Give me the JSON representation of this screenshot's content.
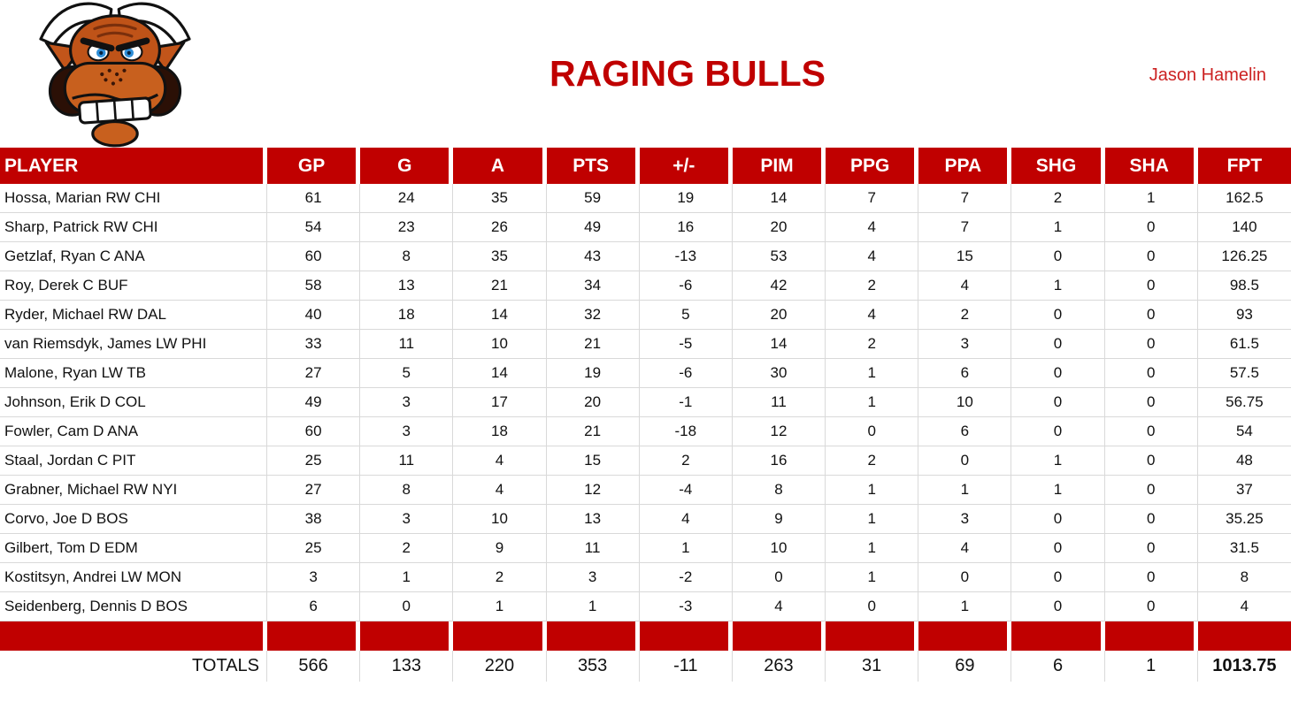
{
  "page": {
    "title": "RAGING BULLS",
    "owner": "Jason Hamelin"
  },
  "colors": {
    "accent_red": "#C00000",
    "owner_red": "#CC2222",
    "gridline": "#D9D9D9",
    "horn_white": "#FFFFFF",
    "bull_orange": "#BF5318",
    "bull_muzzle": "#C8601E",
    "bull_dark": "#2B1006",
    "bull_eye_blue": "#2E8FD8"
  },
  "logo": {
    "name": "raging-bull-logo"
  },
  "table": {
    "columns": [
      "PLAYER",
      "GP",
      "G",
      "A",
      "PTS",
      "+/-",
      "PIM",
      "PPG",
      "PPA",
      "SHG",
      "SHA",
      "FPT"
    ],
    "rows": [
      [
        "Hossa, Marian RW CHI",
        61,
        24,
        35,
        59,
        19,
        14,
        7,
        7,
        2,
        1,
        162.5
      ],
      [
        "Sharp, Patrick RW CHI",
        54,
        23,
        26,
        49,
        16,
        20,
        4,
        7,
        1,
        0,
        140
      ],
      [
        "Getzlaf, Ryan C ANA",
        60,
        8,
        35,
        43,
        -13,
        53,
        4,
        15,
        0,
        0,
        126.25
      ],
      [
        "Roy, Derek C BUF",
        58,
        13,
        21,
        34,
        -6,
        42,
        2,
        4,
        1,
        0,
        98.5
      ],
      [
        "Ryder, Michael RW DAL",
        40,
        18,
        14,
        32,
        5,
        20,
        4,
        2,
        0,
        0,
        93
      ],
      [
        "van Riemsdyk, James LW PHI",
        33,
        11,
        10,
        21,
        -5,
        14,
        2,
        3,
        0,
        0,
        61.5
      ],
      [
        "Malone, Ryan LW TB",
        27,
        5,
        14,
        19,
        -6,
        30,
        1,
        6,
        0,
        0,
        57.5
      ],
      [
        "Johnson, Erik D COL",
        49,
        3,
        17,
        20,
        -1,
        11,
        1,
        10,
        0,
        0,
        56.75
      ],
      [
        "Fowler, Cam D ANA",
        60,
        3,
        18,
        21,
        -18,
        12,
        0,
        6,
        0,
        0,
        54
      ],
      [
        "Staal, Jordan C PIT",
        25,
        11,
        4,
        15,
        2,
        16,
        2,
        0,
        1,
        0,
        48
      ],
      [
        "Grabner, Michael RW NYI",
        27,
        8,
        4,
        12,
        -4,
        8,
        1,
        1,
        1,
        0,
        37
      ],
      [
        "Corvo, Joe D BOS",
        38,
        3,
        10,
        13,
        4,
        9,
        1,
        3,
        0,
        0,
        35.25
      ],
      [
        "Gilbert, Tom D EDM",
        25,
        2,
        9,
        11,
        1,
        10,
        1,
        4,
        0,
        0,
        31.5
      ],
      [
        "Kostitsyn, Andrei LW MON",
        3,
        1,
        2,
        3,
        -2,
        0,
        1,
        0,
        0,
        0,
        8
      ],
      [
        "Seidenberg, Dennis D BOS",
        6,
        0,
        1,
        1,
        -3,
        4,
        0,
        1,
        0,
        0,
        4
      ]
    ],
    "totals_label": "TOTALS",
    "totals": [
      566,
      133,
      220,
      353,
      -11,
      263,
      31,
      69,
      6,
      1,
      "1013.75"
    ]
  }
}
